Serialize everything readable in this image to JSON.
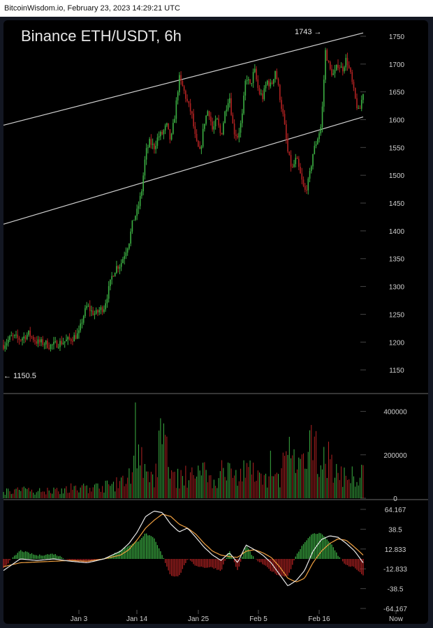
{
  "header": {
    "text": "BitcoinWisdom.io, February 23, 2023 14:29:21 UTC"
  },
  "chart_data": {
    "type": "candlestick",
    "title": "Binance ETH/USDT, 6h",
    "annotations": {
      "high": "1743 →",
      "low": "← 1150.5"
    },
    "price_axis": {
      "ticks": [
        "1750",
        "1700",
        "1650",
        "1600",
        "1550",
        "1500",
        "1450",
        "1400",
        "1350",
        "1300",
        "1250",
        "1200",
        "1150"
      ],
      "ylim": [
        1120,
        1760
      ]
    },
    "volume_axis": {
      "ticks": [
        "400000",
        "200000",
        "0"
      ],
      "ylim": [
        0,
        450000
      ]
    },
    "macd_axis": {
      "ticks": [
        "64.167",
        "38.5",
        "12.833",
        "-12.833",
        "-38.5",
        "-64.167"
      ],
      "ylim": [
        -64.167,
        64.167
      ]
    },
    "x_labels": [
      "Jan 3",
      "Jan 14",
      "Jan 25",
      "Feb 5",
      "Feb 16",
      "Now"
    ],
    "channel_lines": [
      {
        "name": "upper",
        "points": [
          [
            0,
            1590
          ],
          [
            86,
            1756
          ]
        ]
      },
      {
        "name": "lower",
        "points": [
          [
            0,
            1412
          ],
          [
            86,
            1605
          ]
        ]
      }
    ],
    "price_path": [
      [
        0,
        1195
      ],
      [
        2,
        1210
      ],
      [
        4,
        1205
      ],
      [
        6,
        1215
      ],
      [
        8,
        1200
      ],
      [
        10,
        1198
      ],
      [
        11,
        1193
      ],
      [
        12,
        1195
      ],
      [
        14,
        1200
      ],
      [
        16,
        1205
      ],
      [
        18,
        1215
      ],
      [
        19,
        1245
      ],
      [
        20,
        1265
      ],
      [
        21,
        1255
      ],
      [
        22,
        1250
      ],
      [
        23,
        1258
      ],
      [
        24,
        1262
      ],
      [
        25,
        1290
      ],
      [
        26,
        1320
      ],
      [
        27,
        1335
      ],
      [
        28,
        1340
      ],
      [
        29,
        1360
      ],
      [
        30,
        1380
      ],
      [
        31,
        1420
      ],
      [
        32,
        1435
      ],
      [
        33,
        1470
      ],
      [
        34,
        1540
      ],
      [
        35,
        1560
      ],
      [
        36,
        1550
      ],
      [
        37,
        1570
      ],
      [
        38,
        1575
      ],
      [
        39,
        1590
      ],
      [
        40,
        1560
      ],
      [
        41,
        1610
      ],
      [
        42,
        1675
      ],
      [
        43,
        1655
      ],
      [
        44,
        1630
      ],
      [
        45,
        1610
      ],
      [
        46,
        1560
      ],
      [
        47,
        1540
      ],
      [
        48,
        1595
      ],
      [
        49,
        1620
      ],
      [
        50,
        1580
      ],
      [
        51,
        1600
      ],
      [
        52,
        1570
      ],
      [
        53,
        1615
      ],
      [
        54,
        1645
      ],
      [
        55,
        1580
      ],
      [
        56,
        1570
      ],
      [
        57,
        1600
      ],
      [
        58,
        1680
      ],
      [
        59,
        1660
      ],
      [
        60,
        1690
      ],
      [
        61,
        1650
      ],
      [
        62,
        1640
      ],
      [
        63,
        1670
      ],
      [
        64,
        1660
      ],
      [
        65,
        1690
      ],
      [
        66,
        1645
      ],
      [
        67,
        1600
      ],
      [
        68,
        1540
      ],
      [
        69,
        1510
      ],
      [
        70,
        1530
      ],
      [
        71,
        1500
      ],
      [
        72,
        1470
      ],
      [
        73,
        1490
      ],
      [
        74,
        1540
      ],
      [
        75,
        1565
      ],
      [
        76,
        1590
      ],
      [
        77,
        1725
      ],
      [
        78,
        1690
      ],
      [
        79,
        1680
      ],
      [
        80,
        1700
      ],
      [
        81,
        1690
      ],
      [
        82,
        1710
      ],
      [
        83,
        1680
      ],
      [
        84,
        1640
      ],
      [
        85,
        1610
      ],
      [
        86,
        1650
      ]
    ],
    "volume_series": [
      [
        0,
        0.1
      ],
      [
        4,
        0.12
      ],
      [
        8,
        0.1
      ],
      [
        12,
        0.13
      ],
      [
        16,
        0.12
      ],
      [
        20,
        0.15
      ],
      [
        24,
        0.17
      ],
      [
        28,
        0.22
      ],
      [
        30,
        0.3
      ],
      [
        32,
        0.85
      ],
      [
        34,
        0.3
      ],
      [
        36,
        0.25
      ],
      [
        38,
        1.0
      ],
      [
        40,
        0.35
      ],
      [
        42,
        0.28
      ],
      [
        44,
        0.3
      ],
      [
        46,
        0.35
      ],
      [
        48,
        0.45
      ],
      [
        50,
        0.25
      ],
      [
        52,
        0.3
      ],
      [
        54,
        0.4
      ],
      [
        56,
        0.3
      ],
      [
        58,
        0.5
      ],
      [
        60,
        0.28
      ],
      [
        62,
        0.27
      ],
      [
        64,
        0.3
      ],
      [
        66,
        0.3
      ],
      [
        68,
        0.75
      ],
      [
        70,
        0.4
      ],
      [
        72,
        0.5
      ],
      [
        74,
        0.8
      ],
      [
        76,
        0.6
      ],
      [
        78,
        0.55
      ],
      [
        80,
        0.32
      ],
      [
        82,
        0.35
      ],
      [
        84,
        0.3
      ],
      [
        86,
        0.35
      ]
    ],
    "macd_line": [
      [
        0,
        -15
      ],
      [
        4,
        0
      ],
      [
        8,
        -2
      ],
      [
        12,
        0
      ],
      [
        16,
        -3
      ],
      [
        20,
        -5
      ],
      [
        24,
        0
      ],
      [
        28,
        10
      ],
      [
        30,
        20
      ],
      [
        32,
        35
      ],
      [
        34,
        55
      ],
      [
        36,
        62
      ],
      [
        38,
        60
      ],
      [
        40,
        45
      ],
      [
        42,
        35
      ],
      [
        44,
        40
      ],
      [
        46,
        28
      ],
      [
        48,
        15
      ],
      [
        50,
        5
      ],
      [
        52,
        -2
      ],
      [
        54,
        8
      ],
      [
        56,
        -5
      ],
      [
        58,
        18
      ],
      [
        60,
        12
      ],
      [
        62,
        5
      ],
      [
        64,
        -5
      ],
      [
        66,
        -20
      ],
      [
        68,
        -35
      ],
      [
        70,
        -28
      ],
      [
        72,
        -15
      ],
      [
        74,
        10
      ],
      [
        76,
        25
      ],
      [
        78,
        30
      ],
      [
        80,
        28
      ],
      [
        82,
        20
      ],
      [
        84,
        10
      ],
      [
        86,
        -5
      ]
    ],
    "signal_line": [
      [
        0,
        -10
      ],
      [
        4,
        -5
      ],
      [
        8,
        -4
      ],
      [
        12,
        -3
      ],
      [
        16,
        -2
      ],
      [
        20,
        -3
      ],
      [
        24,
        0
      ],
      [
        28,
        5
      ],
      [
        30,
        12
      ],
      [
        32,
        25
      ],
      [
        34,
        40
      ],
      [
        36,
        50
      ],
      [
        38,
        58
      ],
      [
        40,
        55
      ],
      [
        42,
        45
      ],
      [
        44,
        40
      ],
      [
        46,
        32
      ],
      [
        48,
        20
      ],
      [
        50,
        10
      ],
      [
        52,
        5
      ],
      [
        54,
        3
      ],
      [
        56,
        2
      ],
      [
        58,
        10
      ],
      [
        60,
        12
      ],
      [
        62,
        8
      ],
      [
        64,
        2
      ],
      [
        66,
        -10
      ],
      [
        68,
        -25
      ],
      [
        70,
        -30
      ],
      [
        72,
        -25
      ],
      [
        74,
        -5
      ],
      [
        76,
        10
      ],
      [
        78,
        20
      ],
      [
        80,
        26
      ],
      [
        82,
        24
      ],
      [
        84,
        15
      ],
      [
        86,
        5
      ]
    ]
  }
}
